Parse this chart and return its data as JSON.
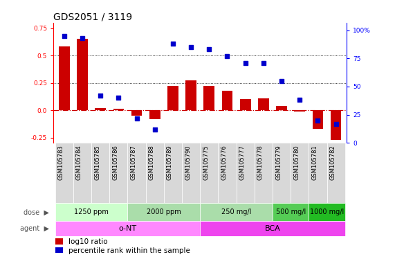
{
  "title": "GDS2051 / 3119",
  "samples": [
    "GSM105783",
    "GSM105784",
    "GSM105785",
    "GSM105786",
    "GSM105787",
    "GSM105788",
    "GSM105789",
    "GSM105790",
    "GSM105775",
    "GSM105776",
    "GSM105777",
    "GSM105778",
    "GSM105779",
    "GSM105780",
    "GSM105781",
    "GSM105782"
  ],
  "log10_ratio": [
    0.58,
    0.65,
    0.02,
    0.015,
    -0.05,
    -0.08,
    0.22,
    0.27,
    0.22,
    0.18,
    0.1,
    0.11,
    0.035,
    -0.01,
    -0.17,
    -0.27
  ],
  "percentile_rank_pct": [
    95,
    93,
    42,
    40,
    22,
    12,
    88,
    85,
    83,
    77,
    71,
    71,
    55,
    38,
    20,
    17
  ],
  "dose_groups": [
    {
      "label": "1250 ppm",
      "start": 0,
      "end": 3,
      "color": "#ccffcc"
    },
    {
      "label": "2000 ppm",
      "start": 4,
      "end": 7,
      "color": "#aaddaa"
    },
    {
      "label": "250 mg/l",
      "start": 8,
      "end": 11,
      "color": "#aaddaa"
    },
    {
      "label": "500 mg/l",
      "start": 12,
      "end": 13,
      "color": "#55cc55"
    },
    {
      "label": "1000 mg/l",
      "start": 14,
      "end": 15,
      "color": "#22bb22"
    }
  ],
  "agent_groups": [
    {
      "label": "o-NT",
      "start": 0,
      "end": 7,
      "color": "#ff88ff"
    },
    {
      "label": "BCA",
      "start": 8,
      "end": 15,
      "color": "#ee44ee"
    }
  ],
  "bar_color": "#cc0000",
  "scatter_color": "#0000cc",
  "xlabels_bg": "#cccccc",
  "dose_bg": "#e8e8e8",
  "agent_bg": "#e8e8e8",
  "ylim_left": [
    -0.3,
    0.8
  ],
  "ylim_right": [
    0,
    106.667
  ],
  "yticks_left": [
    -0.25,
    0.0,
    0.25,
    0.5,
    0.75
  ],
  "yticks_right": [
    0,
    25,
    50,
    75,
    100
  ],
  "bg_color": "#ffffff",
  "title_fontsize": 10,
  "tick_fontsize": 6.5,
  "sample_fontsize": 6,
  "dose_fontsize": 7,
  "agent_fontsize": 8,
  "legend_fontsize": 7.5
}
